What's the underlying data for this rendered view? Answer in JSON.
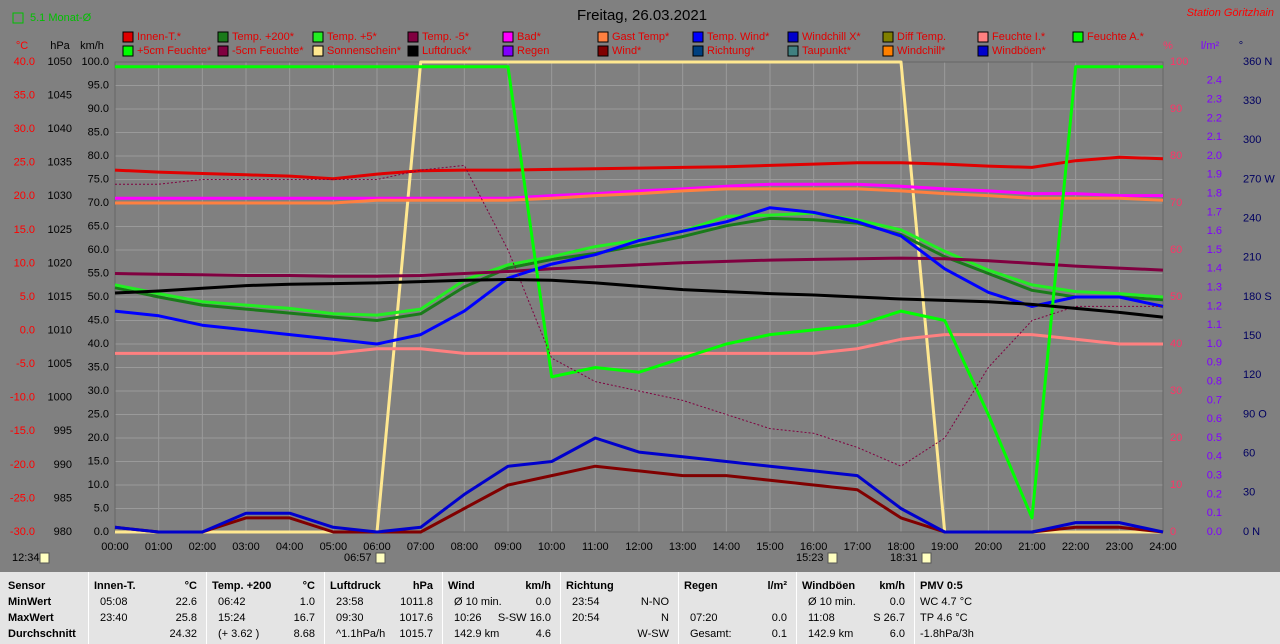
{
  "header": {
    "badge": "5.1 Monat-Ø",
    "station": "Station Göritzhain"
  },
  "chart_data": {
    "type": "line",
    "title": "Freitag, 26.03.2021",
    "x": [
      0,
      1,
      2,
      3,
      4,
      5,
      6,
      7,
      8,
      9,
      10,
      11,
      12,
      13,
      14,
      15,
      16,
      17,
      18,
      19,
      20,
      21,
      22,
      23,
      24
    ],
    "xlim": [
      0,
      24
    ],
    "xticks": [
      {
        "value": 0,
        "label": "00:00"
      },
      {
        "value": 1,
        "label": "01:00"
      },
      {
        "value": 2,
        "label": "02:00"
      },
      {
        "value": 3,
        "label": "03:00"
      },
      {
        "value": 4,
        "label": "04:00"
      },
      {
        "value": 5,
        "label": "05:00"
      },
      {
        "value": 6,
        "label": "06:00"
      },
      {
        "value": 7,
        "label": "07:00"
      },
      {
        "value": 8,
        "label": "08:00"
      },
      {
        "value": 9,
        "label": "09:00"
      },
      {
        "value": 10,
        "label": "10:00"
      },
      {
        "value": 11,
        "label": "11:00"
      },
      {
        "value": 12,
        "label": "12:00"
      },
      {
        "value": 13,
        "label": "13:00"
      },
      {
        "value": 14,
        "label": "14:00"
      },
      {
        "value": 15,
        "label": "15:00"
      },
      {
        "value": 16,
        "label": "16:00"
      },
      {
        "value": 17,
        "label": "17:00"
      },
      {
        "value": 18,
        "label": "18:00"
      },
      {
        "value": 19,
        "label": "19:00"
      },
      {
        "value": 20,
        "label": "20:00"
      },
      {
        "value": 21,
        "label": "21:00"
      },
      {
        "value": 22,
        "label": "22:00"
      },
      {
        "value": 23,
        "label": "23:00"
      },
      {
        "value": 24,
        "label": "24:00"
      }
    ],
    "ylabel": "km/h",
    "ylim": [
      0,
      100
    ],
    "yticks": [
      {
        "value": 0,
        "label": "0.0"
      },
      {
        "value": 5,
        "label": "5.0"
      },
      {
        "value": 10,
        "label": "10.0"
      },
      {
        "value": 15,
        "label": "15.0"
      },
      {
        "value": 20,
        "label": "20.0"
      },
      {
        "value": 25,
        "label": "25.0"
      },
      {
        "value": 30,
        "label": "30.0"
      },
      {
        "value": 35,
        "label": "35.0"
      },
      {
        "value": 40,
        "label": "40.0"
      },
      {
        "value": 45,
        "label": "45.0"
      },
      {
        "value": 50,
        "label": "50.0"
      },
      {
        "value": 55,
        "label": "55.0"
      },
      {
        "value": 60,
        "label": "60.0"
      },
      {
        "value": 65,
        "label": "65.0"
      },
      {
        "value": 70,
        "label": "70.0"
      },
      {
        "value": 75,
        "label": "75.0"
      },
      {
        "value": 80,
        "label": "80.0"
      },
      {
        "value": 85,
        "label": "85.0"
      },
      {
        "value": 90,
        "label": "90.0"
      },
      {
        "value": 95,
        "label": "95.0"
      },
      {
        "value": 100,
        "label": "100.0"
      }
    ],
    "grid": true,
    "axes": [
      {
        "unit": "°C",
        "color": "#ff0000",
        "lim": [
          -30,
          40
        ],
        "ticks": [
          {
            "value": -30,
            "label": "-30.0"
          },
          {
            "value": -25,
            "label": "-25.0"
          },
          {
            "value": -20,
            "label": "-20.0"
          },
          {
            "value": -15,
            "label": "-15.0"
          },
          {
            "value": -10,
            "label": "-10.0"
          },
          {
            "value": -5,
            "label": "-5.0"
          },
          {
            "value": 0,
            "label": "0.0"
          },
          {
            "value": 5,
            "label": "5.0"
          },
          {
            "value": 10,
            "label": "10.0"
          },
          {
            "value": 15,
            "label": "15.0"
          },
          {
            "value": 20,
            "label": "20.0"
          },
          {
            "value": 25,
            "label": "25.0"
          },
          {
            "value": 30,
            "label": "30.0"
          },
          {
            "value": 35,
            "label": "35.0"
          },
          {
            "value": 40,
            "label": "40.0"
          }
        ]
      },
      {
        "unit": "hPa",
        "color": "#000000",
        "lim": [
          980,
          1050
        ],
        "ticks": [
          980,
          985,
          990,
          995,
          1000,
          1005,
          1010,
          1015,
          1020,
          1025,
          1030,
          1035,
          1040,
          1045,
          1050
        ]
      },
      {
        "unit": "%",
        "color": "#ff3366",
        "lim": [
          0,
          100
        ],
        "ticks": [
          0,
          10,
          20,
          30,
          40,
          50,
          60,
          70,
          80,
          90,
          100
        ]
      },
      {
        "unit": "l/m²",
        "color": "#8000ff",
        "lim": [
          0,
          2.5
        ],
        "ticks": [
          {
            "value": 0,
            "label": "0.0"
          },
          0.1,
          0.2,
          0.3,
          0.4,
          0.5,
          0.6,
          0.7,
          0.8,
          0.9,
          {
            "value": 1,
            "label": "1.0"
          },
          1.1,
          1.2,
          1.3,
          1.4,
          1.5,
          1.6,
          1.7,
          1.8,
          1.9,
          {
            "value": 2,
            "label": "2.0"
          },
          2.1,
          2.2,
          2.3,
          2.4
        ]
      },
      {
        "unit": "°",
        "color": "#000060",
        "lim": [
          0,
          360
        ],
        "ticks": [
          {
            "value": 0,
            "label": "0 N"
          },
          30,
          60,
          {
            "value": 90,
            "label": "90 O"
          },
          120,
          150,
          {
            "value": 180,
            "label": "180 S"
          },
          210,
          240,
          {
            "value": 270,
            "label": "270 W"
          },
          300,
          330,
          {
            "value": 360,
            "label": "360 N"
          }
        ]
      }
    ],
    "series": [
      {
        "name": "Innen-T.*",
        "color": "#e00000",
        "axis": "°C",
        "values": [
          23.9,
          23.6,
          23.4,
          23.2,
          23.0,
          22.6,
          23.3,
          23.8,
          23.9,
          23.9,
          24.0,
          24.1,
          24.2,
          24.3,
          24.4,
          24.6,
          24.8,
          25.0,
          25.0,
          24.8,
          24.5,
          24.3,
          25.3,
          25.8,
          25.6
        ]
      },
      {
        "name": "Temp. +200*",
        "color": "#1a7a1a",
        "axis": "°C",
        "values": [
          6.4,
          5.0,
          3.8,
          3.2,
          2.6,
          2.0,
          1.5,
          2.5,
          6.5,
          9.3,
          10.6,
          11.5,
          12.7,
          14.0,
          15.6,
          16.7,
          16.5,
          16.0,
          14.3,
          11.0,
          8.5,
          6.0,
          5.0,
          5.0,
          4.6
        ]
      },
      {
        "name": "Temp. +5*",
        "color": "#22ee22",
        "axis": "°C",
        "values": [
          6.8,
          5.5,
          4.3,
          3.8,
          3.3,
          2.5,
          2.3,
          3.2,
          7.5,
          9.8,
          11.0,
          12.5,
          13.5,
          14.8,
          17.0,
          17.2,
          17.5,
          16.5,
          15.0,
          11.8,
          9.0,
          6.8,
          5.8,
          5.5,
          5.0
        ]
      },
      {
        "name": "Temp. -5*",
        "color": "#800040",
        "axis": "°C",
        "values": [
          8.5,
          8.4,
          8.3,
          8.2,
          8.2,
          8.1,
          8.1,
          8.2,
          8.5,
          8.8,
          9.2,
          9.5,
          9.8,
          10.1,
          10.3,
          10.5,
          10.6,
          10.7,
          10.8,
          10.7,
          10.4,
          10.0,
          9.6,
          9.3,
          9.0
        ]
      },
      {
        "name": "Bad*",
        "color": "#ff00ff",
        "axis": "°C",
        "values": [
          19.7,
          19.7,
          19.7,
          19.7,
          19.7,
          19.7,
          19.7,
          19.7,
          19.7,
          19.7,
          20.1,
          20.4,
          20.8,
          21.1,
          21.5,
          21.8,
          21.8,
          21.8,
          21.5,
          21.1,
          20.8,
          20.4,
          20.4,
          20.1,
          20.1
        ]
      },
      {
        "name": "Gast Temp*",
        "color": "#ff8040",
        "axis": "°C",
        "values": [
          19.0,
          19.0,
          19.0,
          19.0,
          19.0,
          19.0,
          19.4,
          19.4,
          19.4,
          19.4,
          19.7,
          20.1,
          20.4,
          20.8,
          21.1,
          21.1,
          21.1,
          21.1,
          20.8,
          20.4,
          20.1,
          19.7,
          19.7,
          19.7,
          19.4
        ]
      },
      {
        "name": "Temp. Wind*",
        "color": "#0000ff",
        "axis": "°C",
        "values": [
          2.9,
          2.2,
          0.8,
          0.1,
          -0.6,
          -1.3,
          -2.0,
          -0.6,
          2.9,
          7.8,
          9.9,
          11.3,
          13.4,
          14.8,
          16.2,
          18.3,
          17.6,
          16.2,
          14.1,
          9.2,
          5.7,
          3.6,
          5.0,
          5.0,
          3.6
        ]
      },
      {
        "name": "Windchill X*",
        "color": "#0000cc"
      },
      {
        "name": "Diff Temp.",
        "color": "#808000"
      },
      {
        "name": "Feuchte I.*",
        "color": "#ff8080",
        "axis": "%",
        "values": [
          38,
          38,
          38,
          38,
          38,
          38,
          39,
          39,
          38,
          38,
          38,
          38,
          38,
          38,
          38,
          38,
          38,
          39,
          41,
          42,
          42,
          42,
          41,
          40,
          40
        ]
      },
      {
        "name": "Feuchte A.*",
        "color": "#00ff00",
        "axis": "%",
        "values": [
          99,
          99,
          99,
          99,
          99,
          99,
          99,
          99,
          99,
          99,
          33,
          35,
          34,
          37,
          40,
          42,
          43,
          44,
          47,
          45,
          25,
          3,
          99,
          99,
          99
        ]
      },
      {
        "name": "+5cm Feuchte*",
        "color": "#00ff00"
      },
      {
        "name": "-5cm Feuchte*",
        "color": "#800040",
        "axis": "%",
        "style": "dotted",
        "values": [
          74,
          74,
          75,
          75,
          75,
          75,
          75,
          77,
          78,
          60,
          37,
          32,
          30,
          28,
          25,
          22,
          21,
          18,
          14,
          20,
          35,
          45,
          48,
          48,
          48
        ]
      },
      {
        "name": "Sonnenschein*",
        "color": "#ffe890",
        "axis": "%",
        "values": [
          0,
          0,
          0,
          0,
          0,
          0,
          0,
          100,
          100,
          100,
          100,
          100,
          100,
          100,
          100,
          100,
          100,
          100,
          100,
          0,
          0,
          0,
          0,
          0,
          0
        ]
      },
      {
        "name": "Luftdruck*",
        "color": "#000000",
        "axis": "hPa",
        "values": [
          1015.6,
          1015.9,
          1016.3,
          1016.7,
          1016.9,
          1017.0,
          1017.1,
          1017.3,
          1017.5,
          1017.6,
          1017.5,
          1017.1,
          1016.6,
          1016.1,
          1015.8,
          1015.5,
          1015.3,
          1015.0,
          1014.7,
          1014.5,
          1014.3,
          1013.9,
          1013.3,
          1012.7,
          1012.0
        ]
      },
      {
        "name": "Regen",
        "color": "#8000ff"
      },
      {
        "name": "Wind*",
        "color": "#800000",
        "axis": "km/h",
        "values": [
          1,
          0,
          0,
          3,
          3,
          0,
          0,
          0,
          5,
          10,
          12,
          14,
          13,
          12,
          12,
          11,
          10,
          9,
          3,
          0,
          0,
          0,
          1,
          1,
          0
        ]
      },
      {
        "name": "Richtung*",
        "color": "#004080"
      },
      {
        "name": "Taupunkt*",
        "color": "#408080"
      },
      {
        "name": "Windchill*",
        "color": "#ff8000"
      },
      {
        "name": "Windböen*",
        "color": "#0000cc",
        "axis": "km/h",
        "values": [
          1,
          0,
          0,
          4,
          4,
          1,
          0,
          1,
          8,
          14,
          15,
          20,
          17,
          16,
          15,
          14,
          13,
          12,
          5,
          0,
          0,
          0,
          2,
          2,
          0
        ]
      }
    ]
  },
  "time_markers": [
    "12:34",
    "06:57",
    "15:23",
    "18:31"
  ],
  "stats": {
    "row_labels": [
      "Sensor",
      "MinWert",
      "MaxWert",
      "Durchschnitt"
    ],
    "groups": [
      {
        "name": "Innen-T.",
        "unit": "°C",
        "rows": [
          [
            "05:08",
            "22.6"
          ],
          [
            "23:40",
            "25.8"
          ],
          [
            "24.32"
          ]
        ]
      },
      {
        "name": "Temp. +200",
        "unit": "°C",
        "rows": [
          [
            "06:42",
            "1.0"
          ],
          [
            "15:24",
            "16.7"
          ],
          [
            "(+ 3.62 )",
            "8.68"
          ]
        ]
      },
      {
        "name": "Luftdruck",
        "unit": "hPa",
        "rows": [
          [
            "23:58",
            "1011.8"
          ],
          [
            "09:30",
            "1017.6"
          ],
          [
            "^1.1hPa/h",
            "1015.7"
          ]
        ]
      },
      {
        "name": "Wind",
        "unit": "km/h",
        "rows": [
          [
            "Ø 10 min.",
            "0.0"
          ],
          [
            "10:26",
            "S-SW 16.0"
          ],
          [
            "142.9 km",
            "4.6"
          ]
        ]
      },
      {
        "name": "Richtung",
        "rows": [
          [
            "23:54",
            "N-NO"
          ],
          [
            "20:54",
            "N"
          ],
          [
            "W-SW"
          ]
        ]
      },
      {
        "name": "Regen",
        "unit": "l/m²",
        "rows": [
          [],
          [
            "07:20",
            "0.0"
          ],
          [
            "Gesamt:",
            "0.1"
          ]
        ]
      },
      {
        "name": "Windböen",
        "unit": "km/h",
        "rows": [
          [
            "Ø 10 min.",
            "0.0"
          ],
          [
            "11:08",
            "S 26.7"
          ],
          [
            "142.9 km",
            "6.0"
          ]
        ]
      },
      {
        "name": "PMV 0:5",
        "rows": [
          [
            "WC 4.7 °C"
          ],
          [
            "TP 4.6 °C"
          ],
          [
            "-1.8hPa/3h"
          ]
        ]
      }
    ]
  }
}
